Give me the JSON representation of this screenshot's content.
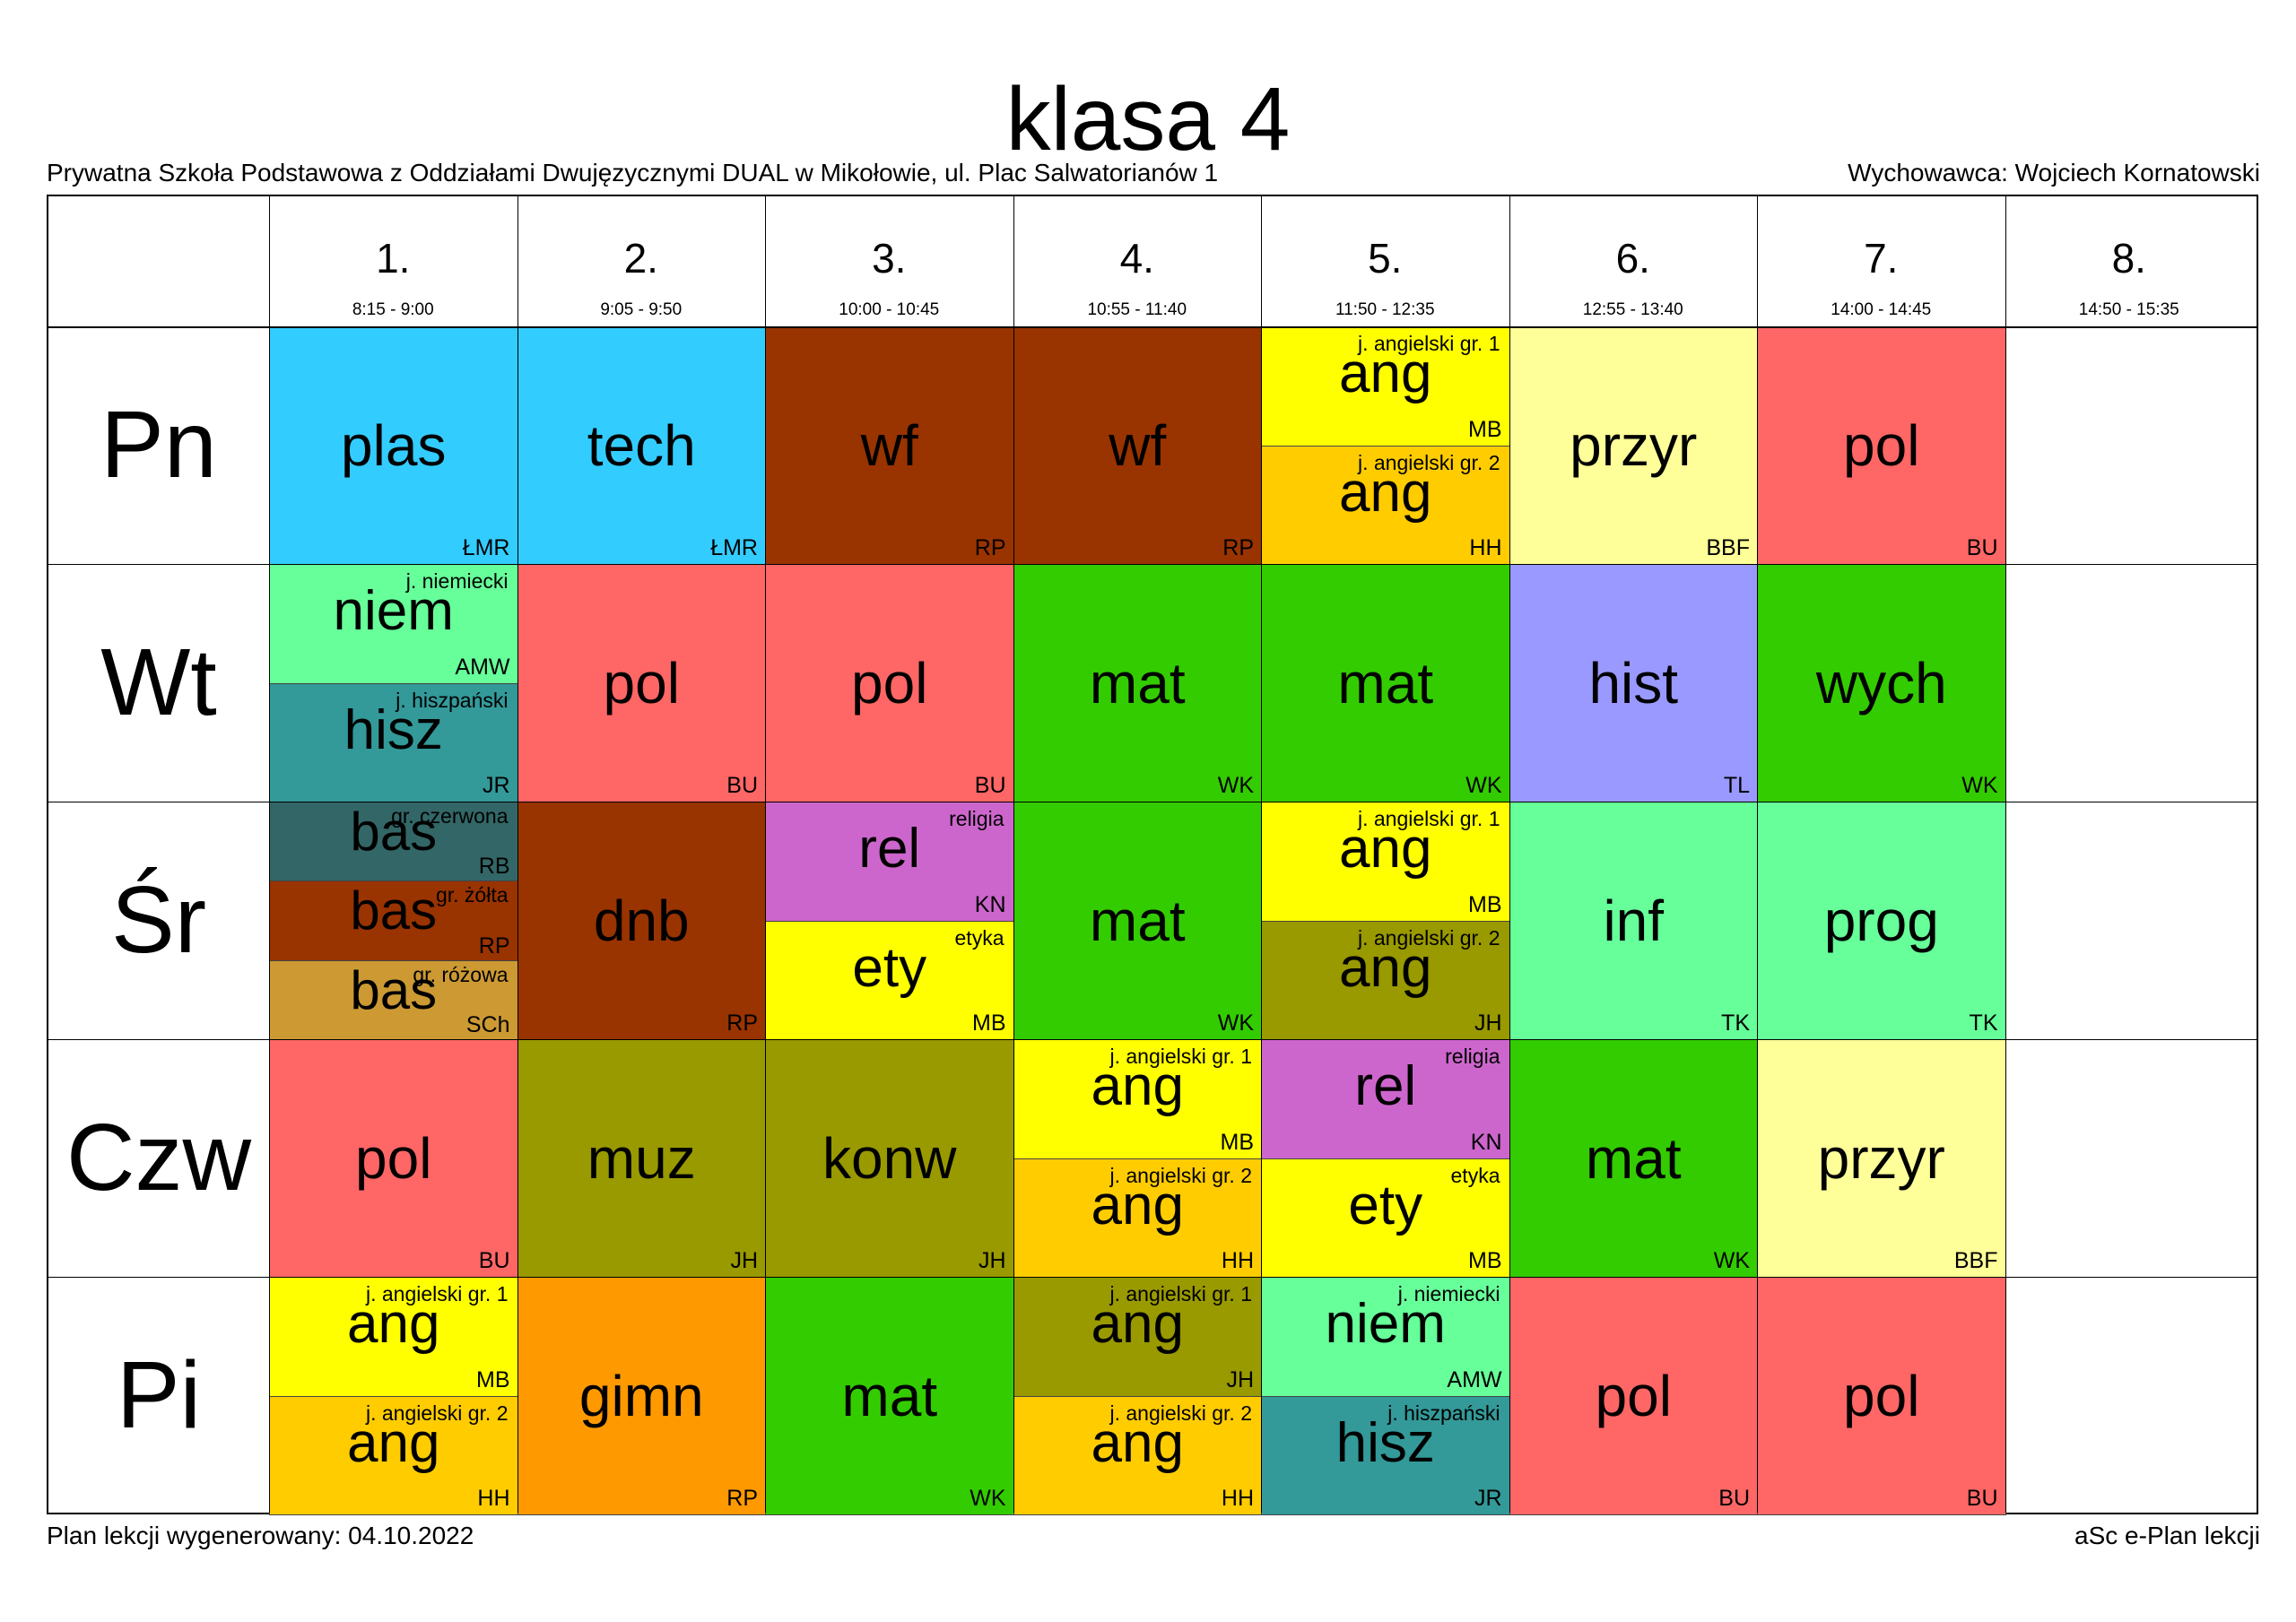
{
  "title": "klasa 4",
  "school": "Prywatna Szkoła Podstawowa z Oddziałami Dwujęzycznymi DUAL w Mikołowie, ul. Plac Salwatorianów 1",
  "homeroom_teacher": "Wychowawca: Wojciech Kornatowski",
  "footer": {
    "generated": "Plan lekcji wygenerowany: 04.10.2022",
    "software": "aSc e-Plan lekcji"
  },
  "periods": [
    {
      "num": "1.",
      "time": "8:15 - 9:00"
    },
    {
      "num": "2.",
      "time": "9:05 - 9:50"
    },
    {
      "num": "3.",
      "time": "10:00 - 10:45"
    },
    {
      "num": "4.",
      "time": "10:55 - 11:40"
    },
    {
      "num": "5.",
      "time": "11:50 - 12:35"
    },
    {
      "num": "6.",
      "time": "12:55 - 13:40"
    },
    {
      "num": "7.",
      "time": "14:00 - 14:45"
    },
    {
      "num": "8.",
      "time": "14:50 - 15:35"
    }
  ],
  "days": [
    "Pn",
    "Wt",
    "Śr",
    "Czw",
    "Pi"
  ],
  "lessons": [
    {
      "day": 0,
      "period": 0,
      "cells": [
        {
          "subject": "plas",
          "teacher": "ŁMR",
          "color": "#33ccff"
        }
      ]
    },
    {
      "day": 0,
      "period": 1,
      "cells": [
        {
          "subject": "tech",
          "teacher": "ŁMR",
          "color": "#33ccff"
        }
      ]
    },
    {
      "day": 0,
      "period": 2,
      "cells": [
        {
          "subject": "wf",
          "teacher": "RP",
          "color": "#993300"
        }
      ]
    },
    {
      "day": 0,
      "period": 3,
      "cells": [
        {
          "subject": "wf",
          "teacher": "RP",
          "color": "#993300"
        }
      ]
    },
    {
      "day": 0,
      "period": 4,
      "cells": [
        {
          "subject": "ang",
          "group": "j. angielski gr. 1",
          "teacher": "MB",
          "color": "#ffff00"
        },
        {
          "subject": "ang",
          "group": "j. angielski gr. 2",
          "teacher": "HH",
          "color": "#ffcc00"
        }
      ]
    },
    {
      "day": 0,
      "period": 5,
      "cells": [
        {
          "subject": "przyr",
          "teacher": "BBF",
          "color": "#ffff99"
        }
      ]
    },
    {
      "day": 0,
      "period": 6,
      "cells": [
        {
          "subject": "pol",
          "teacher": "BU",
          "color": "#ff6666"
        }
      ]
    },
    {
      "day": 1,
      "period": 0,
      "cells": [
        {
          "subject": "niem",
          "group": "j. niemiecki",
          "teacher": "AMW",
          "color": "#66ff99"
        },
        {
          "subject": "hisz",
          "group": "j. hiszpański",
          "teacher": "JR",
          "color": "#339999"
        }
      ]
    },
    {
      "day": 1,
      "period": 1,
      "cells": [
        {
          "subject": "pol",
          "teacher": "BU",
          "color": "#ff6666"
        }
      ]
    },
    {
      "day": 1,
      "period": 2,
      "cells": [
        {
          "subject": "pol",
          "teacher": "BU",
          "color": "#ff6666"
        }
      ]
    },
    {
      "day": 1,
      "period": 3,
      "cells": [
        {
          "subject": "mat",
          "teacher": "WK",
          "color": "#33cc00"
        }
      ]
    },
    {
      "day": 1,
      "period": 4,
      "cells": [
        {
          "subject": "mat",
          "teacher": "WK",
          "color": "#33cc00"
        }
      ]
    },
    {
      "day": 1,
      "period": 5,
      "cells": [
        {
          "subject": "hist",
          "teacher": "TL",
          "color": "#9999ff"
        }
      ]
    },
    {
      "day": 1,
      "period": 6,
      "cells": [
        {
          "subject": "wych",
          "teacher": "WK",
          "color": "#33cc00"
        }
      ]
    },
    {
      "day": 2,
      "period": 0,
      "cells": [
        {
          "subject": "bas",
          "group": "gr. czerwona",
          "teacher": "RB",
          "color": "#336666"
        },
        {
          "subject": "bas",
          "group": "gr. żółta",
          "teacher": "RP",
          "color": "#993300"
        },
        {
          "subject": "bas",
          "group": "gr. różowa",
          "teacher": "SCh",
          "color": "#cc9933"
        }
      ]
    },
    {
      "day": 2,
      "period": 1,
      "cells": [
        {
          "subject": "dnb",
          "teacher": "RP",
          "color": "#993300"
        }
      ]
    },
    {
      "day": 2,
      "period": 2,
      "cells": [
        {
          "subject": "rel",
          "group": "religia",
          "teacher": "KN",
          "color": "#cc66cc"
        },
        {
          "subject": "ety",
          "group": "etyka",
          "teacher": "MB",
          "color": "#ffff00"
        }
      ]
    },
    {
      "day": 2,
      "period": 3,
      "cells": [
        {
          "subject": "mat",
          "teacher": "WK",
          "color": "#33cc00"
        }
      ]
    },
    {
      "day": 2,
      "period": 4,
      "cells": [
        {
          "subject": "ang",
          "group": "j. angielski gr. 1",
          "teacher": "MB",
          "color": "#ffff00"
        },
        {
          "subject": "ang",
          "group": "j. angielski gr. 2",
          "teacher": "JH",
          "color": "#999900"
        }
      ]
    },
    {
      "day": 2,
      "period": 5,
      "cells": [
        {
          "subject": "inf",
          "teacher": "TK",
          "color": "#66ff99"
        }
      ]
    },
    {
      "day": 2,
      "period": 6,
      "cells": [
        {
          "subject": "prog",
          "teacher": "TK",
          "color": "#66ff99"
        }
      ]
    },
    {
      "day": 3,
      "period": 0,
      "cells": [
        {
          "subject": "pol",
          "teacher": "BU",
          "color": "#ff6666"
        }
      ]
    },
    {
      "day": 3,
      "period": 1,
      "cells": [
        {
          "subject": "muz",
          "teacher": "JH",
          "color": "#999900"
        }
      ]
    },
    {
      "day": 3,
      "period": 2,
      "cells": [
        {
          "subject": "konw",
          "teacher": "JH",
          "color": "#999900"
        }
      ]
    },
    {
      "day": 3,
      "period": 3,
      "cells": [
        {
          "subject": "ang",
          "group": "j. angielski gr. 1",
          "teacher": "MB",
          "color": "#ffff00"
        },
        {
          "subject": "ang",
          "group": "j. angielski gr. 2",
          "teacher": "HH",
          "color": "#ffcc00"
        }
      ]
    },
    {
      "day": 3,
      "period": 4,
      "cells": [
        {
          "subject": "rel",
          "group": "religia",
          "teacher": "KN",
          "color": "#cc66cc"
        },
        {
          "subject": "ety",
          "group": "etyka",
          "teacher": "MB",
          "color": "#ffff00"
        }
      ]
    },
    {
      "day": 3,
      "period": 5,
      "cells": [
        {
          "subject": "mat",
          "teacher": "WK",
          "color": "#33cc00"
        }
      ]
    },
    {
      "day": 3,
      "period": 6,
      "cells": [
        {
          "subject": "przyr",
          "teacher": "BBF",
          "color": "#ffff99"
        }
      ]
    },
    {
      "day": 4,
      "period": 0,
      "cells": [
        {
          "subject": "ang",
          "group": "j. angielski gr. 1",
          "teacher": "MB",
          "color": "#ffff00"
        },
        {
          "subject": "ang",
          "group": "j. angielski gr. 2",
          "teacher": "HH",
          "color": "#ffcc00"
        }
      ]
    },
    {
      "day": 4,
      "period": 1,
      "cells": [
        {
          "subject": "gimn",
          "teacher": "RP",
          "color": "#ff9900"
        }
      ]
    },
    {
      "day": 4,
      "period": 2,
      "cells": [
        {
          "subject": "mat",
          "teacher": "WK",
          "color": "#33cc00"
        }
      ]
    },
    {
      "day": 4,
      "period": 3,
      "cells": [
        {
          "subject": "ang",
          "group": "j. angielski gr. 1",
          "teacher": "JH",
          "color": "#999900"
        },
        {
          "subject": "ang",
          "group": "j. angielski gr. 2",
          "teacher": "HH",
          "color": "#ffcc00"
        }
      ]
    },
    {
      "day": 4,
      "period": 4,
      "cells": [
        {
          "subject": "niem",
          "group": "j. niemiecki",
          "teacher": "AMW",
          "color": "#66ff99"
        },
        {
          "subject": "hisz",
          "group": "j. hiszpański",
          "teacher": "JR",
          "color": "#339999"
        }
      ]
    },
    {
      "day": 4,
      "period": 5,
      "cells": [
        {
          "subject": "pol",
          "teacher": "BU",
          "color": "#ff6666"
        }
      ]
    },
    {
      "day": 4,
      "period": 6,
      "cells": [
        {
          "subject": "pol",
          "teacher": "BU",
          "color": "#ff6666"
        }
      ]
    }
  ]
}
